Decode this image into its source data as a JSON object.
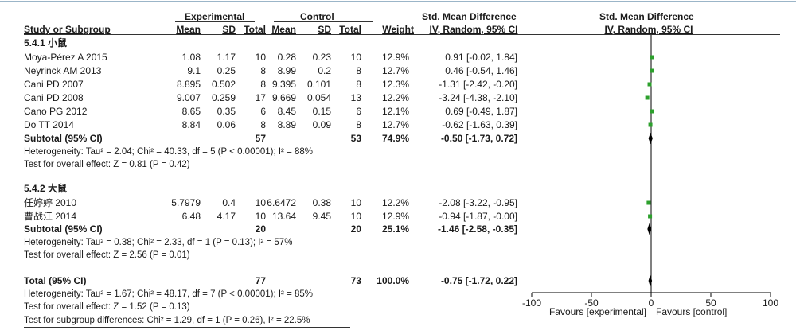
{
  "header": {
    "experimental": "Experimental",
    "control": "Control",
    "smd_left": "Std. Mean Difference",
    "smd_right": "Std. Mean Difference",
    "col_study": "Study or Subgroup",
    "col_mean1": "Mean",
    "col_sd1": "SD",
    "col_total1": "Total",
    "col_mean2": "Mean",
    "col_sd2": "SD",
    "col_total2": "Total",
    "col_weight": "Weight",
    "col_method_left": "IV, Random, 95% CI",
    "col_method_right": "IV, Random, 95% CI"
  },
  "groups": [
    {
      "title": "5.4.1 小鼠",
      "studies": [
        {
          "name": "Moya-Pérez A 2015",
          "mean1": "1.08",
          "sd1": "1.17",
          "n1": "10",
          "mean2": "0.28",
          "sd2": "0.23",
          "n2": "10",
          "weight": "12.9%",
          "ci": "0.91 [-0.02, 1.84]"
        },
        {
          "name": "Neyrinck AM 2013",
          "mean1": "9.1",
          "sd1": "0.25",
          "n1": "8",
          "mean2": "8.99",
          "sd2": "0.2",
          "n2": "8",
          "weight": "12.7%",
          "ci": "0.46 [-0.54, 1.46]"
        },
        {
          "name": "Cani PD 2007",
          "mean1": "8.895",
          "sd1": "0.502",
          "n1": "8",
          "mean2": "9.395",
          "sd2": "0.101",
          "n2": "8",
          "weight": "12.3%",
          "ci": "-1.31 [-2.42, -0.20]"
        },
        {
          "name": "Cani PD 2008",
          "mean1": "9.007",
          "sd1": "0.259",
          "n1": "17",
          "mean2": "9.669",
          "sd2": "0.054",
          "n2": "13",
          "weight": "12.2%",
          "ci": "-3.24 [-4.38, -2.10]"
        },
        {
          "name": "Cano PG 2012",
          "mean1": "8.65",
          "sd1": "0.35",
          "n1": "6",
          "mean2": "8.45",
          "sd2": "0.15",
          "n2": "6",
          "weight": "12.1%",
          "ci": "0.69 [-0.49, 1.87]"
        },
        {
          "name": "Do TT 2014",
          "mean1": "8.84",
          "sd1": "0.06",
          "n1": "8",
          "mean2": "8.89",
          "sd2": "0.09",
          "n2": "8",
          "weight": "12.7%",
          "ci": "-0.62 [-1.63, 0.39]"
        }
      ],
      "subtotal": {
        "label": "Subtotal (95% CI)",
        "n1": "57",
        "n2": "53",
        "weight": "74.9%",
        "ci": "-0.50 [-1.73, 0.72]"
      },
      "heterogeneity": "Heterogeneity: Tau² = 2.04; Chi² = 40.33, df = 5 (P < 0.00001); I² = 88%",
      "overall": "Test for overall effect: Z = 0.81 (P = 0.42)"
    },
    {
      "title": "5.4.2 大鼠",
      "studies": [
        {
          "name": "任婷婷 2010",
          "mean1": "5.7979",
          "sd1": "0.4",
          "n1": "10",
          "mean2": "6.6472",
          "sd2": "0.38",
          "n2": "10",
          "weight": "12.2%",
          "ci": "-2.08 [-3.22, -0.95]"
        },
        {
          "name": "曹战江 2014",
          "mean1": "6.48",
          "sd1": "4.17",
          "n1": "10",
          "mean2": "13.64",
          "sd2": "9.45",
          "n2": "10",
          "weight": "12.9%",
          "ci": "-0.94 [-1.87, -0.00]"
        }
      ],
      "subtotal": {
        "label": "Subtotal (95% CI)",
        "n1": "20",
        "n2": "20",
        "weight": "25.1%",
        "ci": "-1.46 [-2.58, -0.35]"
      },
      "heterogeneity": "Heterogeneity: Tau² = 0.38; Chi² = 2.33, df = 1 (P = 0.13); I² = 57%",
      "overall": "Test for overall effect: Z = 2.56 (P = 0.01)"
    }
  ],
  "total": {
    "label": "Total (95% CI)",
    "n1": "77",
    "n2": "73",
    "weight": "100.0%",
    "ci": "-0.75 [-1.72, 0.22]",
    "heterogeneity": "Heterogeneity: Tau² = 1.67; Chi² = 48.17, df = 7 (P < 0.00001); I² = 85%",
    "overall": "Test for overall effect: Z = 1.52 (P = 0.13)",
    "subgroup": "Test for subgroup differences: Chi² = 1.29, df = 1 (P = 0.26), I² = 22.5%"
  },
  "axis": {
    "favours_left": "Favours [experimental]",
    "favours_right": "Favours [control]"
  },
  "chart_data": {
    "type": "scatter",
    "xlim": [
      -100,
      100
    ],
    "ticks": [
      -100,
      -50,
      0,
      50,
      100
    ],
    "square_color": "#2ca02c",
    "diamond_color": "#000000",
    "studies": [
      {
        "estimate": 0.91,
        "lower": -0.02,
        "upper": 1.84
      },
      {
        "estimate": 0.46,
        "lower": -0.54,
        "upper": 1.46
      },
      {
        "estimate": -1.31,
        "lower": -2.42,
        "upper": -0.2
      },
      {
        "estimate": -3.24,
        "lower": -4.38,
        "upper": -2.1
      },
      {
        "estimate": 0.69,
        "lower": -0.49,
        "upper": 1.87
      },
      {
        "estimate": -0.62,
        "lower": -1.63,
        "upper": 0.39
      },
      {
        "estimate": -2.08,
        "lower": -3.22,
        "upper": -0.95
      },
      {
        "estimate": -0.94,
        "lower": -1.87,
        "upper": 0.0
      }
    ],
    "summaries": [
      {
        "estimate": -0.5,
        "lower": -1.73,
        "upper": 0.72
      },
      {
        "estimate": -1.46,
        "lower": -2.58,
        "upper": -0.35
      },
      {
        "estimate": -0.75,
        "lower": -1.72,
        "upper": 0.22
      }
    ]
  }
}
